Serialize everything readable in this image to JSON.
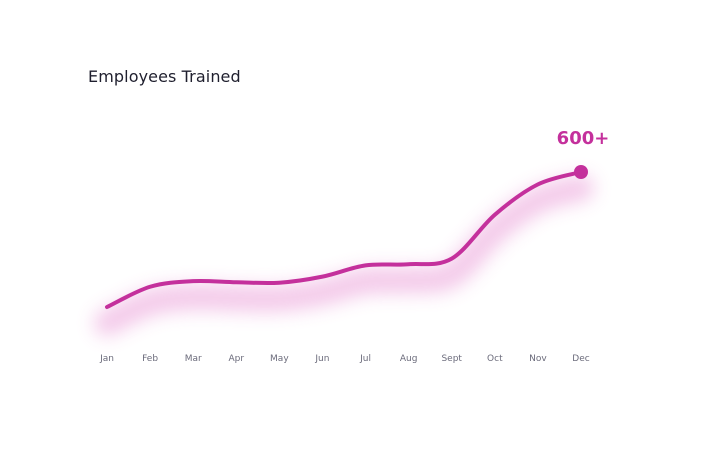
{
  "chart_data": {
    "type": "line",
    "title": "Employees Trained",
    "categories": [
      "Jan",
      "Feb",
      "Mar",
      "Apr",
      "May",
      "Jun",
      "Jul",
      "Aug",
      "Sept",
      "Oct",
      "Nov",
      "Dec"
    ],
    "series": [
      {
        "values": [
          0,
          90,
          115,
          110,
          108,
          135,
          185,
          190,
          215,
          410,
          545,
          600
        ]
      }
    ],
    "end_label": "600+",
    "ylim": [
      0,
      600
    ],
    "grid": false,
    "colors": {
      "line": "#c4309c",
      "glow": "#e68ad0",
      "title": "#1f1f2e",
      "tick": "#6b6b7b"
    }
  }
}
